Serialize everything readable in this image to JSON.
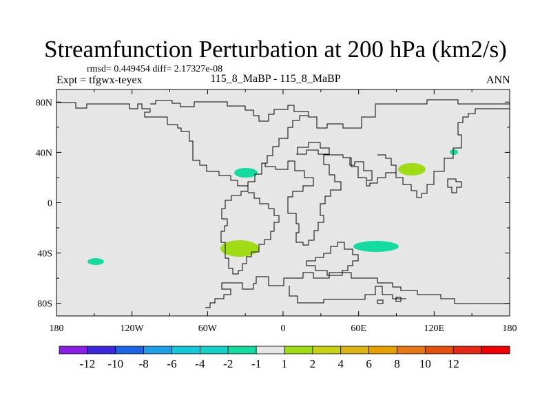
{
  "title": "Streamfunction Perturbation at 200 hPa (km2/s)",
  "stats": {
    "rmsd_label": "rmsd=",
    "rmsd_value": "0.449454",
    "diff_label": "diff=",
    "diff_value": "2.17327e-08"
  },
  "experiment": "Expt = tfgwx-teyex",
  "case": "115_8_MaBP - 115_8_MaBP",
  "season": "ANN",
  "map": {
    "background": "#e6e6e6",
    "x_ticks": [
      {
        "lon": -180,
        "label": "180"
      },
      {
        "lon": -120,
        "label": "120W"
      },
      {
        "lon": -60,
        "label": "60W"
      },
      {
        "lon": 0,
        "label": "0"
      },
      {
        "lon": 60,
        "label": "60E"
      },
      {
        "lon": 120,
        "label": "120E"
      },
      {
        "lon": 180,
        "label": "180"
      }
    ],
    "y_ticks": [
      {
        "lat": 80,
        "label": "80N"
      },
      {
        "lat": 40,
        "label": "40N"
      },
      {
        "lat": 0,
        "label": "0"
      },
      {
        "lat": -40,
        "label": "40S"
      },
      {
        "lat": -80,
        "label": "80S"
      }
    ],
    "lon_range": [
      -180,
      180
    ],
    "lat_range": [
      -90,
      90
    ]
  },
  "colorbar": {
    "colors": [
      "#8a1ee6",
      "#3c28dc",
      "#1e64e6",
      "#1ea0e6",
      "#14c8dc",
      "#14d2c8",
      "#14dca0",
      "#e6e6e6",
      "#a0dc14",
      "#c8d214",
      "#dcb414",
      "#e6a000",
      "#e67814",
      "#e6500f",
      "#e62814",
      "#f00000"
    ],
    "labels": [
      "-12",
      "-10",
      "-8",
      "-6",
      "-4",
      "-2",
      "-1",
      "1",
      "2",
      "4",
      "6",
      "8",
      "10",
      "12"
    ]
  },
  "anomalies": [
    {
      "lon": -148,
      "lat": -47,
      "value": "-1",
      "color": "#14dca0"
    },
    {
      "lon": -38,
      "lat": 24,
      "value": "-1",
      "color": "#14dca0"
    },
    {
      "lon": 73,
      "lat": -35,
      "value": "-1",
      "color": "#14dca0"
    },
    {
      "lon": 135,
      "lat": 41,
      "value": "-1",
      "color": "#14dca0"
    },
    {
      "lon": -35,
      "lat": -36,
      "value": "1",
      "color": "#a0dc14"
    },
    {
      "lon": 102,
      "lat": 27,
      "value": "1",
      "color": "#a0dc14"
    }
  ]
}
